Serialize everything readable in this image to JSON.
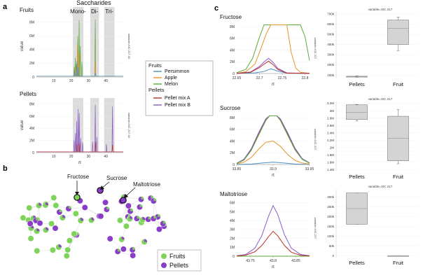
{
  "panels": {
    "a": "a",
    "b": "b",
    "c": "c"
  },
  "colors": {
    "persimmon": "#4a90c8",
    "apple": "#e8922a",
    "melon": "#5aab3c",
    "pellet_mix_a": "#b8322a",
    "pellet_mix_b": "#8a5cc8",
    "fruits_node": "#7ed35a",
    "pellets_node": "#8a3dc8",
    "band": "#dcdcdc",
    "box": "#d4d4d4"
  },
  "legend_a": {
    "groups": [
      {
        "title": "Fruits",
        "items": [
          {
            "label": "Persimmon",
            "color": "#4a90c8"
          },
          {
            "label": "Apple",
            "color": "#e8922a"
          },
          {
            "label": "Melon",
            "color": "#5aab3c"
          }
        ]
      },
      {
        "title": "Pellets",
        "items": [
          {
            "label": "Pellet mix A",
            "color": "#b8322a"
          },
          {
            "label": "Pellet mix B",
            "color": "#8a5cc8"
          }
        ]
      }
    ]
  },
  "legend_b": {
    "items": [
      {
        "label": "Fruits",
        "color": "#7ed35a"
      },
      {
        "label": "Pellets",
        "color": "#8a3dc8"
      }
    ]
  },
  "network_labels": {
    "fructose": "Fructose",
    "sucrose": "Sucrose",
    "maltotriose": "Maltotriose"
  },
  "chart_data": [
    {
      "id": "a-fruits",
      "type": "line",
      "title": "Fruits",
      "header": "Saccharides",
      "band_labels": [
        "Mono-",
        "Di-",
        "Tri-"
      ],
      "bands": [
        [
          21,
          27
        ],
        [
          31,
          36
        ],
        [
          39,
          45
        ]
      ],
      "xlabel": "rt",
      "ylabel": "value",
      "side_label": "variable=XIC 217.00",
      "xlim": [
        0,
        50
      ],
      "ylim": [
        0,
        9000000
      ],
      "xticks": [
        10,
        20,
        30,
        40
      ],
      "yticks": [
        0,
        2000000,
        4000000,
        6000000,
        8000000
      ],
      "ytick_labels": [
        "0",
        "2M",
        "4M",
        "6M",
        "8M"
      ],
      "series": [
        {
          "color": "#5aab3c",
          "peaks": [
            [
              21.8,
              1500000
            ],
            [
              22.4,
              2800000
            ],
            [
              23.0,
              1900000
            ],
            [
              23.8,
              6000000
            ],
            [
              24.6,
              8300000
            ],
            [
              25.2,
              4500000
            ],
            [
              26.2,
              2200000
            ],
            [
              33.9,
              8400000
            ]
          ]
        },
        {
          "color": "#e8922a",
          "peaks": [
            [
              22.6,
              1600000
            ],
            [
              23.6,
              4800000
            ],
            [
              24.4,
              3500000
            ],
            [
              33.9,
              2300000
            ]
          ]
        },
        {
          "color": "#4a90c8",
          "peaks": [
            [
              22.0,
              900000
            ],
            [
              23.3,
              2300000
            ],
            [
              24.1,
              1400000
            ],
            [
              33.9,
              600000
            ]
          ]
        }
      ]
    },
    {
      "id": "a-pellets",
      "type": "line",
      "title": "Pellets",
      "band_labels": [],
      "bands": [
        [
          21,
          27
        ],
        [
          31,
          36
        ],
        [
          39,
          45
        ]
      ],
      "xlabel": "rt",
      "ylabel": "value",
      "side_label": "variable=XIC 217.00",
      "xlim": [
        0,
        50
      ],
      "ylim": [
        0,
        9000000
      ],
      "xticks": [
        10,
        20,
        30,
        40
      ],
      "yticks": [
        0,
        2000000,
        4000000,
        6000000,
        8000000
      ],
      "ytick_labels": [
        "0",
        "2M",
        "4M",
        "6M",
        "8M"
      ],
      "series": [
        {
          "color": "#8a5cc8",
          "peaks": [
            [
              21.7,
              2100000
            ],
            [
              22.5,
              3200000
            ],
            [
              23.2,
              5200000
            ],
            [
              24.0,
              7200000
            ],
            [
              24.7,
              6500000
            ],
            [
              25.5,
              2400000
            ],
            [
              26.6,
              1700000
            ],
            [
              32.4,
              1800000
            ],
            [
              33.9,
              7900000
            ],
            [
              34.8,
              2600000
            ],
            [
              40.3,
              1400000
            ],
            [
              43.8,
              7600000
            ]
          ]
        },
        {
          "color": "#b8322a",
          "peaks": [
            [
              23.4,
              1400000
            ],
            [
              24.5,
              1600000
            ],
            [
              33.9,
              1800000
            ],
            [
              43.8,
              1300000
            ]
          ]
        }
      ]
    },
    {
      "id": "c-fructose",
      "type": "line",
      "title": "Fructose",
      "xlabel": "rt",
      "side_label": "variable=XIC 217",
      "xlim": [
        22.65,
        22.81
      ],
      "ylim": [
        0,
        8600000
      ],
      "xticks": [
        22.65,
        22.7,
        22.75,
        22.8
      ],
      "xtick_labels": [
        "22.65",
        "22.7",
        "22.75",
        "22.8"
      ],
      "yticks": [
        0,
        2000000,
        4000000,
        6000000,
        8000000
      ],
      "ytick_labels": [
        "0",
        "2M",
        "4M",
        "6M",
        "8M"
      ],
      "series": [
        {
          "color": "#5aab3c",
          "x": [
            22.65,
            22.67,
            22.685,
            22.7,
            22.71,
            22.72,
            22.735,
            22.75,
            22.765,
            22.78,
            22.79,
            22.8,
            22.81
          ],
          "y": [
            150000,
            700000,
            2600000,
            6200000,
            8300000,
            8300000,
            8300000,
            8300000,
            8300000,
            8300000,
            8300000,
            6300000,
            2200000
          ]
        },
        {
          "color": "#e8922a",
          "x": [
            22.65,
            22.67,
            22.69,
            22.7,
            22.715,
            22.725,
            22.735,
            22.75,
            22.76,
            22.77,
            22.78,
            22.79,
            22.81
          ],
          "y": [
            50000,
            300000,
            1600000,
            3600000,
            6800000,
            8300000,
            8300000,
            8300000,
            8300000,
            3500000,
            900000,
            200000,
            50000
          ]
        },
        {
          "color": "#4a90c8",
          "x": [
            22.65,
            22.69,
            22.71,
            22.725,
            22.74,
            22.76,
            22.81
          ],
          "y": [
            30000,
            100000,
            350000,
            800000,
            400000,
            60000,
            20000
          ]
        },
        {
          "color": "#8a5cc8",
          "x": [
            22.65,
            22.68,
            22.7,
            22.712,
            22.72,
            22.73,
            22.74,
            22.76,
            22.81
          ],
          "y": [
            20000,
            250000,
            1200000,
            2100000,
            2600000,
            1900000,
            900000,
            100000,
            20000
          ]
        },
        {
          "color": "#b8322a",
          "x": [
            22.65,
            22.68,
            22.7,
            22.712,
            22.72,
            22.73,
            22.74,
            22.76,
            22.81
          ],
          "y": [
            20000,
            200000,
            1000000,
            1700000,
            2100000,
            1500000,
            700000,
            80000,
            20000
          ]
        }
      ]
    },
    {
      "id": "c-sucrose",
      "type": "line",
      "title": "Sucrose",
      "xlabel": "rt",
      "side_label": "variable=XIC 217",
      "xlim": [
        33.85,
        33.95
      ],
      "ylim": [
        0,
        8600000
      ],
      "xticks": [
        33.85,
        33.9,
        33.95
      ],
      "xtick_labels": [
        "33.85",
        "33.9",
        "33.95"
      ],
      "yticks": [
        0,
        2000000,
        4000000,
        6000000,
        8000000
      ],
      "ytick_labels": [
        "0",
        "2M",
        "4M",
        "6M",
        "8M"
      ],
      "series": [
        {
          "color": "#4a90c8",
          "x": [
            33.85,
            33.87,
            33.885,
            33.9,
            33.915,
            33.93,
            33.95
          ],
          "y": [
            20000,
            80000,
            250000,
            400000,
            250000,
            80000,
            20000
          ]
        },
        {
          "color": "#e8922a",
          "x": [
            33.85,
            33.86,
            33.87,
            33.88,
            33.89,
            33.9,
            33.91,
            33.92,
            33.93,
            33.94,
            33.95
          ],
          "y": [
            100000,
            400000,
            1200000,
            2600000,
            3800000,
            4000000,
            3100000,
            1700000,
            700000,
            250000,
            80000
          ]
        },
        {
          "color": "#b8322a",
          "x": [
            33.85,
            33.86,
            33.87,
            33.88,
            33.89,
            33.895,
            33.905,
            33.91,
            33.92,
            33.93,
            33.94,
            33.95
          ],
          "y": [
            200000,
            800000,
            2500000,
            5200000,
            7600000,
            8300000,
            8300000,
            7600000,
            5200000,
            2600000,
            900000,
            250000
          ]
        },
        {
          "color": "#8a5cc8",
          "x": [
            33.85,
            33.86,
            33.87,
            33.88,
            33.89,
            33.895,
            33.905,
            33.91,
            33.92,
            33.93,
            33.94,
            33.95
          ],
          "y": [
            220000,
            900000,
            2700000,
            5400000,
            7800000,
            8300000,
            8300000,
            7800000,
            5400000,
            2800000,
            1000000,
            280000
          ]
        },
        {
          "color": "#5aab3c",
          "x": [
            33.85,
            33.86,
            33.87,
            33.88,
            33.89,
            33.895,
            33.905,
            33.91,
            33.92,
            33.93,
            33.94,
            33.95
          ],
          "y": [
            180000,
            750000,
            2400000,
            5000000,
            7500000,
            8300000,
            8300000,
            7500000,
            5000000,
            2500000,
            850000,
            230000
          ]
        }
      ]
    },
    {
      "id": "c-maltotriose",
      "type": "line",
      "title": "Maltotriose",
      "xlabel": "rt",
      "side_label": "variable=XIC 217",
      "xlim": [
        43.72,
        43.88
      ],
      "ylim": [
        0,
        6300000
      ],
      "xticks": [
        43.75,
        43.8,
        43.85
      ],
      "xtick_labels": [
        "43.75",
        "43.8",
        "43.85"
      ],
      "yticks": [
        0,
        1000000,
        2000000,
        3000000,
        4000000,
        5000000,
        6000000
      ],
      "ytick_labels": [
        "0",
        "1M",
        "2M",
        "3M",
        "4M",
        "5M",
        "6M"
      ],
      "series": [
        {
          "color": "#5aab3c",
          "x": [
            43.72,
            43.88
          ],
          "y": [
            0,
            0
          ]
        },
        {
          "color": "#8a5cc8",
          "x": [
            43.72,
            43.74,
            43.76,
            43.775,
            43.79,
            43.8,
            43.81,
            43.825,
            43.84,
            43.86,
            43.88
          ],
          "y": [
            50000,
            200000,
            900000,
            2300000,
            4500000,
            5700000,
            4700000,
            2400000,
            900000,
            200000,
            50000
          ]
        },
        {
          "color": "#b8322a",
          "x": [
            43.72,
            43.74,
            43.76,
            43.775,
            43.79,
            43.8,
            43.81,
            43.825,
            43.84,
            43.86,
            43.88
          ],
          "y": [
            30000,
            120000,
            500000,
            1200000,
            2200000,
            2800000,
            2300000,
            1200000,
            450000,
            100000,
            30000
          ]
        }
      ]
    },
    {
      "id": "box-fructose",
      "type": "box",
      "title": "variable=XIC 217",
      "categories": [
        "Pellets",
        "Fruit"
      ],
      "ylim": [
        60000,
        720000
      ],
      "yticks": [
        100000,
        200000,
        300000,
        400000,
        500000,
        600000,
        700000
      ],
      "ytick_labels": [
        "100k",
        "200k",
        "300k",
        "400k",
        "500k",
        "600k",
        "700k"
      ],
      "boxes": [
        {
          "min": 78000,
          "q1": 80000,
          "median": 85000,
          "q3": 88000,
          "max": 92000
        },
        {
          "min": 340000,
          "q1": 400000,
          "median": 560000,
          "q3": 640000,
          "max": 670000
        }
      ]
    },
    {
      "id": "box-sucrose",
      "type": "box",
      "title": "variable=XIC 217",
      "categories": [
        "Pellets",
        "Fruit"
      ],
      "ylim": [
        1350000,
        3250000
      ],
      "yticks": [
        1400000,
        1600000,
        1800000,
        2000000,
        2200000,
        2400000,
        2600000,
        2800000,
        3000000,
        3200000
      ],
      "ytick_labels": [
        "1.4M",
        "1.6M",
        "1.8M",
        "2M",
        "2.2M",
        "2.4M",
        "2.6M",
        "2.8M",
        "3M",
        "3.2M"
      ],
      "boxes": [
        {
          "min": 2720000,
          "q1": 2760000,
          "median": 2960000,
          "q3": 3160000,
          "max": 3170000
        },
        {
          "min": 1560000,
          "q1": 1640000,
          "median": 2250000,
          "q3": 2850000,
          "max": 3030000
        }
      ]
    },
    {
      "id": "box-maltotriose",
      "type": "box",
      "title": "variable=XIC 217",
      "categories": [
        "Pellets",
        "Fruit"
      ],
      "ylim": [
        -10000,
        340000
      ],
      "yticks": [
        0,
        50000,
        100000,
        150000,
        200000,
        250000,
        300000
      ],
      "ytick_labels": [
        "0",
        "50k",
        "100k",
        "150k",
        "200k",
        "250k",
        "300k"
      ],
      "boxes": [
        {
          "min": 160000,
          "q1": 160000,
          "median": 240000,
          "q3": 320000,
          "max": 320000
        },
        {
          "min": 0,
          "q1": 0,
          "median": 0,
          "q3": 0,
          "max": 0
        }
      ]
    }
  ]
}
